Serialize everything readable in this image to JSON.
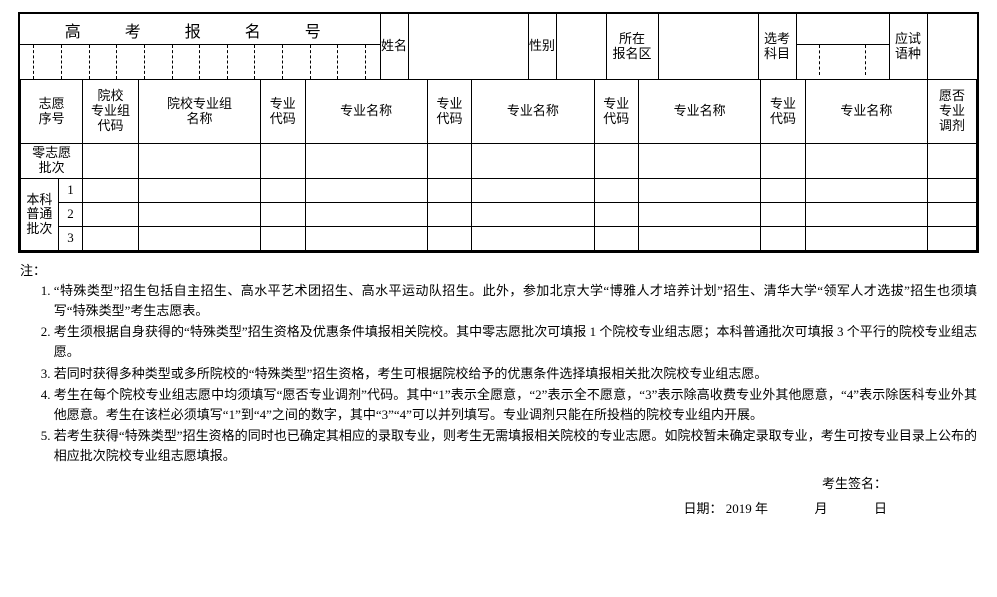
{
  "top": {
    "reg_no_label": "高　考　报　名　号",
    "reg_no_boxes": 14,
    "name_lbl": "姓名",
    "gender_lbl": "性别",
    "district_lbl_l1": "所在",
    "district_lbl_l2": "报名区",
    "subject_lbl_l1": "选考",
    "subject_lbl_l2": "科目",
    "lang_lbl_l1": "应试",
    "lang_lbl_l2": "语种"
  },
  "grid": {
    "headers": {
      "order": "志愿\n序号",
      "school_code": "院校\n专业组\n代码",
      "school_name": "院校专业组\n名称",
      "major_code": "专业\n代码",
      "major_name": "专业名称",
      "adjust": "愿否\n专业\n调剂"
    },
    "row_group_0": "零志愿\n批次",
    "row_group_1": "本科普通批次",
    "rows_g1_nums": [
      "1",
      "2",
      "3"
    ]
  },
  "notes": {
    "title": "注：",
    "items": [
      "“特殊类型”招生包括自主招生、高水平艺术团招生、高水平运动队招生。此外，参加北京大学“博雅人才培养计划”招生、清华大学“领军人才选拔”招生也须填写“特殊类型”考生志愿表。",
      "考生须根据自身获得的“特殊类型”招生资格及优惠条件填报相关院校。其中零志愿批次可填报 1 个院校专业组志愿；本科普通批次可填报 3 个平行的院校专业组志愿。",
      "若同时获得多种类型或多所院校的“特殊类型”招生资格，考生可根据院校给予的优惠条件选择填报相关批次院校专业组志愿。",
      "考生在每个院校专业组志愿中均须填写“愿否专业调剂”代码。其中“1”表示全愿意，“2”表示全不愿意，“3”表示除高收费专业外其他愿意，“4”表示除医科专业外其他愿意。考生在该栏必须填写“1”到“4”之间的数字，其中“3”“4”可以并列填写。专业调剂只能在所投档的院校专业组内开展。",
      "若考生获得“特殊类型”招生资格的同时也已确定其相应的录取专业，则考生无需填报相关院校的专业志愿。如院校暂未确定录取专业，考生可按专业目录上公布的相应批次院校专业组志愿填报。"
    ]
  },
  "signature": {
    "sign": "考生签名：",
    "date_prefix": "日期：",
    "year": "2019 年",
    "month": "月",
    "day": "日"
  },
  "style": {
    "border_color": "#000000",
    "bg": "#ffffff",
    "font_family": "SimSun"
  }
}
